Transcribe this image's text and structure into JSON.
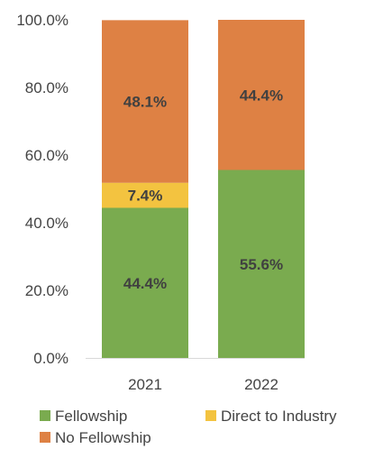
{
  "chart_data": {
    "type": "bar",
    "stacked": true,
    "categories": [
      "2021",
      "2022"
    ],
    "series": [
      {
        "name": "Fellowship",
        "values": [
          44.4,
          55.6
        ],
        "labels": [
          "44.4%",
          "55.6%"
        ],
        "color": "#7aab4f"
      },
      {
        "name": "Direct to Industry",
        "values": [
          7.4,
          0
        ],
        "labels": [
          "7.4%",
          ""
        ],
        "color": "#f3c340"
      },
      {
        "name": "No Fellowship",
        "values": [
          48.1,
          44.4
        ],
        "labels": [
          "48.1%",
          "44.4%"
        ],
        "color": "#de8144"
      }
    ],
    "y_ticks": [
      "0.0%",
      "20.0%",
      "40.0%",
      "60.0%",
      "80.0%",
      "100.0%"
    ],
    "ylim": [
      0,
      100
    ],
    "grid": false,
    "legend_position": "bottom",
    "title": "",
    "xlabel": "",
    "ylabel": ""
  }
}
